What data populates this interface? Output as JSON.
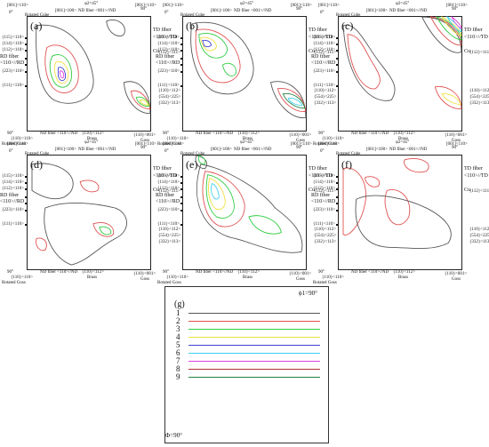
{
  "panels": [
    {
      "id": "a",
      "label": "(a)"
    },
    {
      "id": "b",
      "label": "(b)"
    },
    {
      "id": "c",
      "label": "(c)"
    },
    {
      "id": "d",
      "label": "(d)"
    },
    {
      "id": "e",
      "label": "(e)"
    },
    {
      "id": "f",
      "label": "(f)"
    }
  ],
  "texts": {
    "phi2": "φ2=45°",
    "phi2_alt": "φ2=45°",
    "top_left_miller": "[001]<110>",
    "top_cube_miller": "[001]<100>",
    "top_right_miller": "[001]<110>",
    "nd_fiber_top": "ND fiber <001>//ND",
    "rotated_cube": "Rotated Cube",
    "cube": "Cube",
    "rd_fiber": "RD fiber",
    "rd_fiber_dir": "<110>//RD",
    "td_fiber": "TD fiber",
    "td_fiber_dir": "<110>//TD",
    "cu": "Cu",
    "left_111_110": "{111}<110>",
    "left_223": "{223}<110>",
    "left_112": "{112}<110>",
    "left_114": "{114}<110>",
    "left_115": "{115}<110>",
    "right_112_111": "{112}<111>",
    "right_110_112": "{110}<112>",
    "right_554": "{554}<225>",
    "right_332": "{332}<113>",
    "zero_deg": "0°",
    "ninety_deg": "90°",
    "ninety_top": "90°",
    "bottom_left_miller": "{110}<110>",
    "rotated_goss": "Rotated Goss",
    "nd_fiber_bottom": "ND fiber <110>//ND",
    "brass_miller": "{110}<112>",
    "brass": "Brass",
    "goss_miller": "{110}<001>",
    "goss": "Goss"
  },
  "legend": {
    "label": "(g)",
    "phi1": "ϕ1=90°",
    "Phi": "Φ=90°",
    "levels": [
      {
        "n": "1",
        "color": "#555555"
      },
      {
        "n": "2",
        "color": "#e05050"
      },
      {
        "n": "3",
        "color": "#2ecc40"
      },
      {
        "n": "4",
        "color": "#f0e040"
      },
      {
        "n": "5",
        "color": "#4040d0"
      },
      {
        "n": "6",
        "color": "#40d0f0"
      },
      {
        "n": "7",
        "color": "#e040e0"
      },
      {
        "n": "8",
        "color": "#b03030"
      },
      {
        "n": "9",
        "color": "#208040"
      }
    ]
  }
}
